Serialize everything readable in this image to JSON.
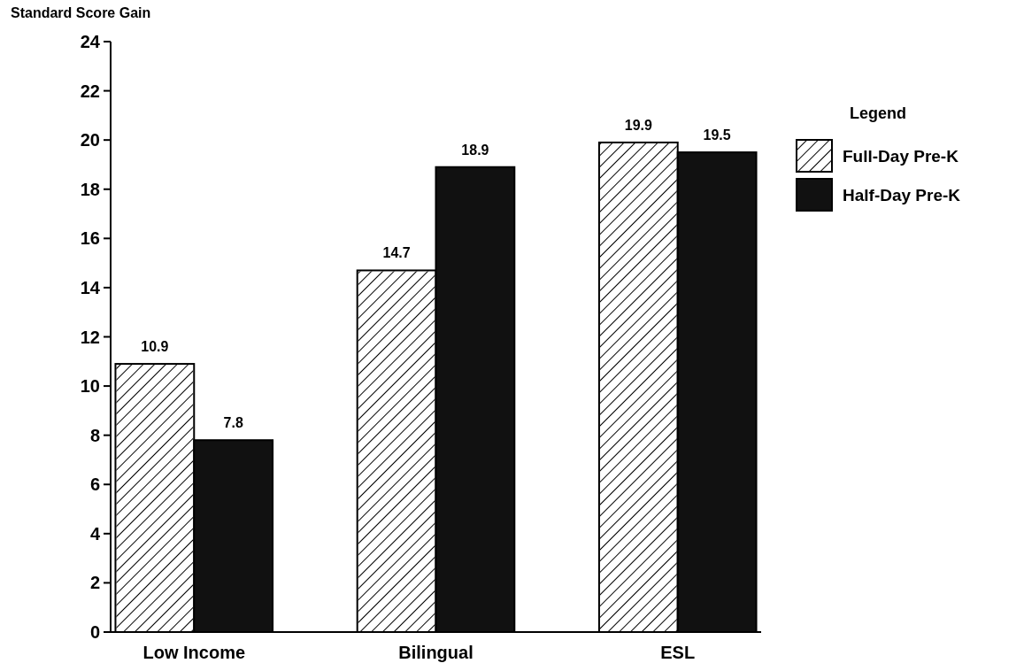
{
  "chart_data": {
    "type": "bar",
    "ylabel": "Standard Score Gain",
    "legend_title": "Legend",
    "categories": [
      "Low Income",
      "Bilingual",
      "ESL"
    ],
    "series": [
      {
        "name": "Full-Day Pre-K",
        "color": "#ffffff",
        "values": [
          10.9,
          14.7,
          19.9
        ]
      },
      {
        "name": "Half-Day Pre-K",
        "color": "#111111",
        "values": [
          7.8,
          18.9,
          19.5
        ]
      }
    ],
    "ylim": [
      0,
      24
    ],
    "yticks": [
      0,
      2,
      4,
      6,
      8,
      10,
      12,
      14,
      16,
      18,
      20,
      22,
      24
    ],
    "grid": false,
    "legend": "right",
    "data_labels": true
  }
}
